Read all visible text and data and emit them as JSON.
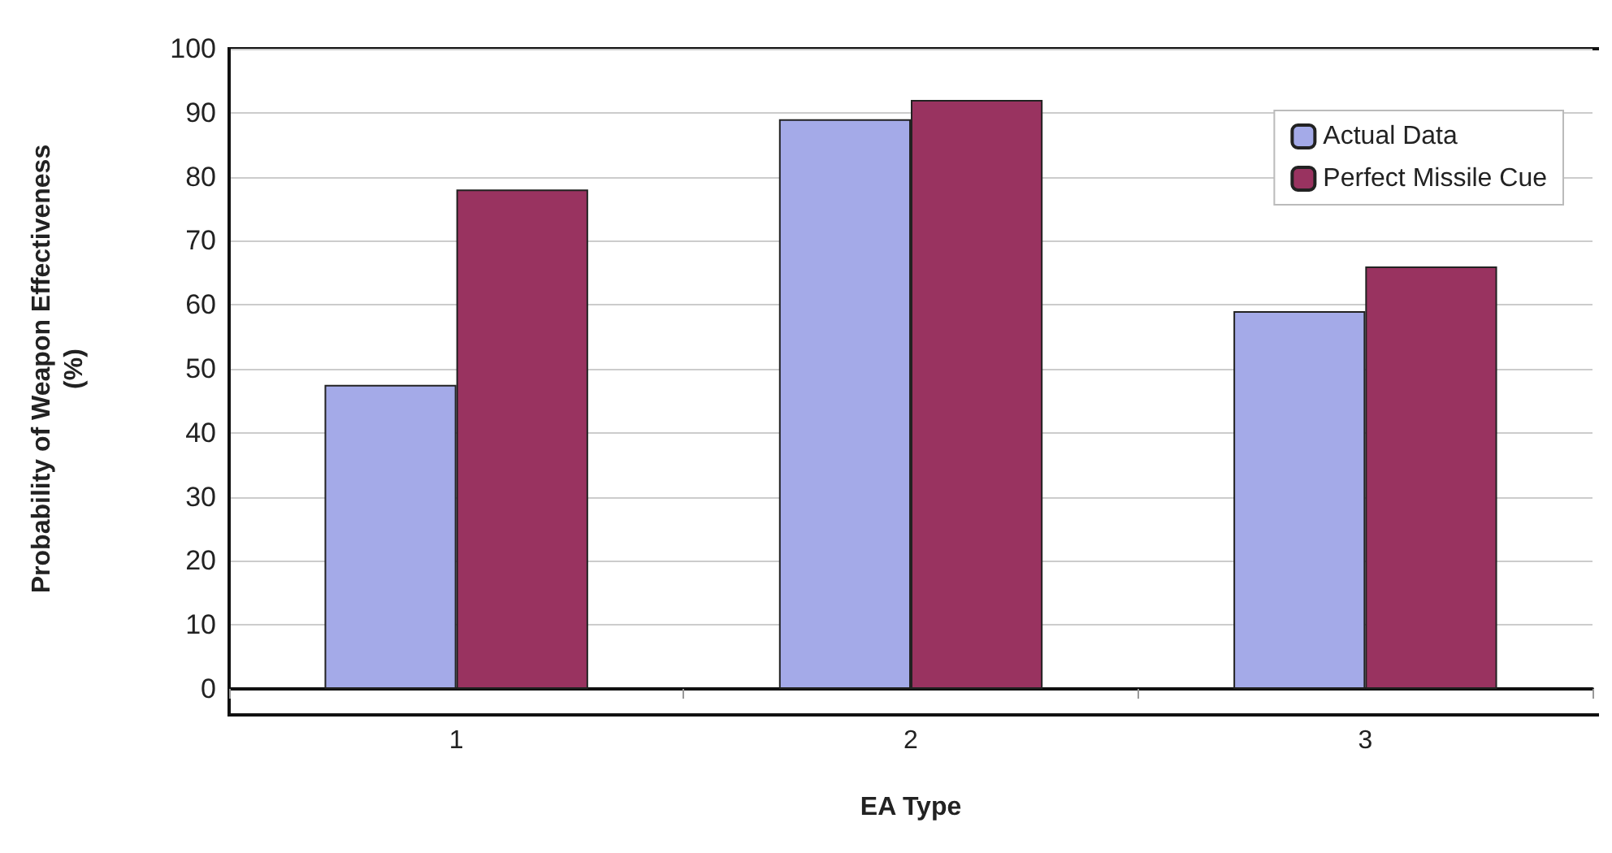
{
  "chart_data": {
    "type": "bar",
    "xlabel": "EA Type",
    "ylabel": "Probability of Weapon Effectiveness\n(%)",
    "categories": [
      "1",
      "2",
      "3"
    ],
    "series": [
      {
        "name": "Actual Data",
        "color": "#a4aae8",
        "values": [
          47.5,
          89,
          59
        ]
      },
      {
        "name": "Perfect Missile Cue",
        "color": "#993360",
        "values": [
          78,
          92,
          66
        ]
      }
    ],
    "ylim": [
      0,
      100
    ],
    "yticks": [
      0,
      10,
      20,
      30,
      40,
      50,
      60,
      70,
      80,
      90,
      100
    ],
    "grid": "y",
    "legend": "top right"
  }
}
